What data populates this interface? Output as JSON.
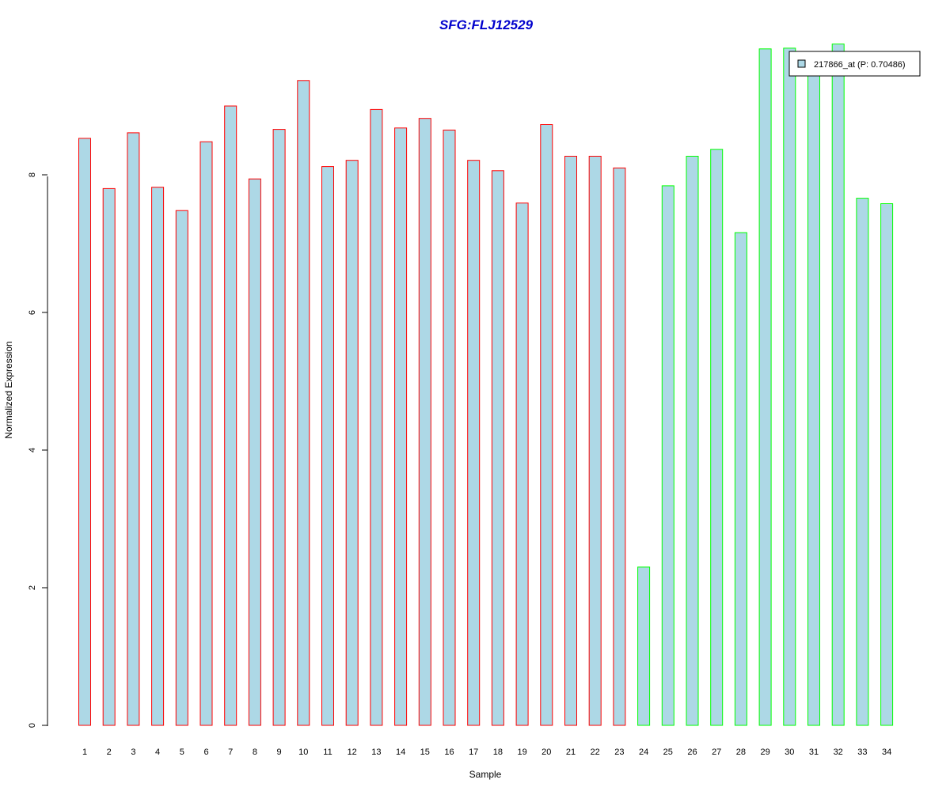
{
  "chart_data": {
    "type": "bar",
    "title": "SFG:FLJ12529",
    "xlabel": "Sample",
    "ylabel": "Normalized Expression",
    "categories": [
      "1",
      "2",
      "3",
      "4",
      "5",
      "6",
      "7",
      "8",
      "9",
      "10",
      "11",
      "12",
      "13",
      "14",
      "15",
      "16",
      "17",
      "18",
      "19",
      "20",
      "21",
      "22",
      "23",
      "24",
      "25",
      "26",
      "27",
      "28",
      "29",
      "30",
      "31",
      "32",
      "33",
      "34"
    ],
    "values": [
      8.53,
      7.8,
      8.61,
      7.82,
      7.48,
      8.48,
      9.0,
      7.94,
      8.66,
      9.37,
      8.12,
      8.21,
      8.95,
      8.68,
      8.82,
      8.65,
      8.21,
      8.06,
      7.59,
      8.73,
      8.27,
      8.27,
      8.1,
      2.3,
      7.84,
      8.27,
      8.37,
      7.16,
      9.83,
      9.84,
      9.47,
      9.9,
      7.66,
      7.58
    ],
    "groups": [
      "red",
      "red",
      "red",
      "red",
      "red",
      "red",
      "red",
      "red",
      "red",
      "red",
      "red",
      "red",
      "red",
      "red",
      "red",
      "red",
      "red",
      "red",
      "red",
      "red",
      "red",
      "red",
      "red",
      "green",
      "green",
      "green",
      "green",
      "green",
      "green",
      "green",
      "green",
      "green",
      "green",
      "green"
    ],
    "yticks": [
      0,
      2,
      4,
      6,
      8
    ],
    "ylim": [
      0,
      10.3
    ],
    "legend": {
      "label": "217866_at (P: 0.70486)",
      "position": "top-right"
    },
    "colors": {
      "bar_fill": "#add8e6",
      "group_red": "#ff0000",
      "group_green": "#00ff00",
      "title": "#0000cd",
      "axis": "#000000"
    },
    "grid": false
  }
}
